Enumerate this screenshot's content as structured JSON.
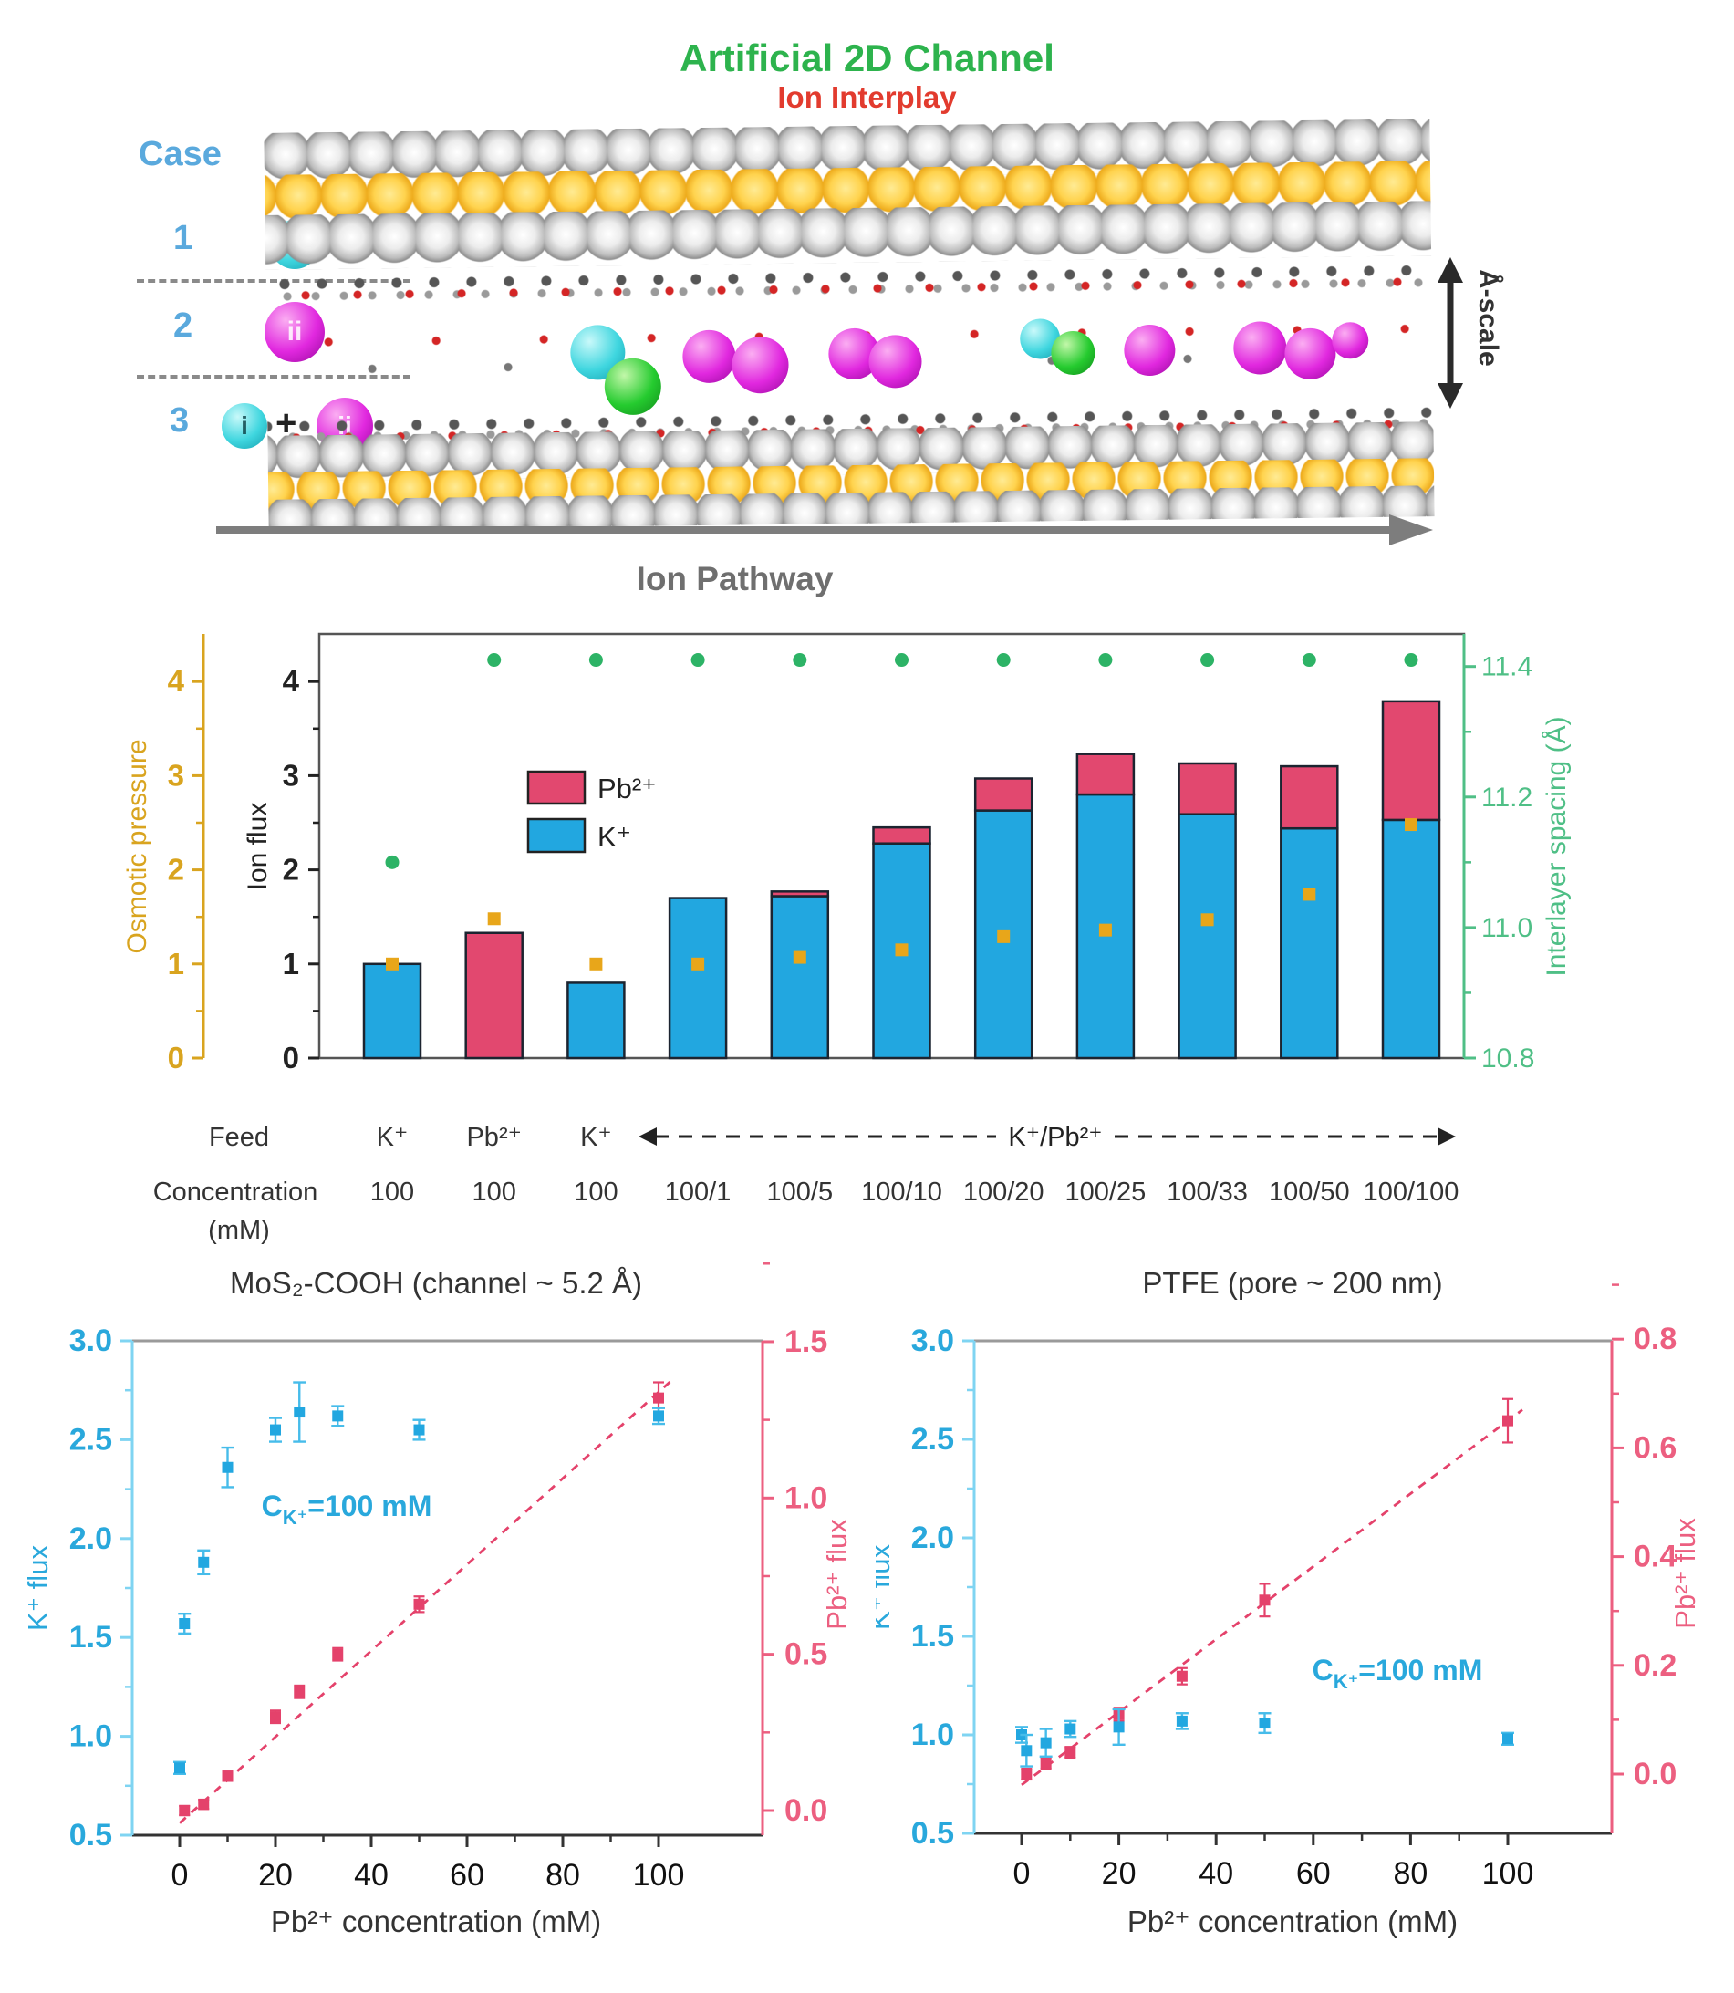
{
  "header": {
    "title": "Artificial 2D Channel",
    "subtitle": "Ion Interplay"
  },
  "diagram": {
    "case_label": "Case",
    "cases": [
      {
        "num": "1",
        "items": [
          {
            "type": "ion-i",
            "label": "i"
          }
        ]
      },
      {
        "num": "2",
        "items": [
          {
            "type": "ion-ii",
            "label": "ii"
          }
        ]
      },
      {
        "num": "3",
        "items": [
          {
            "type": "ion-i",
            "label": "i"
          },
          {
            "type": "plus",
            "label": "+"
          },
          {
            "type": "ion-ii",
            "label": "ii"
          }
        ]
      }
    ],
    "channel_ions": [
      "i",
      "x",
      "ii",
      "ii",
      "ii",
      "ii",
      "i",
      "x",
      "ii",
      "ii",
      "ii",
      "ii"
    ],
    "colors": {
      "ion_i": "#3fd6df",
      "ion_ii": "#e128df",
      "ion_extra": "#25cb2f"
    },
    "scale_label": "Å-scale",
    "pathway_label": "Ion Pathway"
  },
  "chart_data": [
    {
      "id": "ion_flux_bar",
      "type": "bar",
      "categories": [
        "100",
        "100",
        "100",
        "100/1",
        "100/5",
        "100/10",
        "100/20",
        "100/25",
        "100/33",
        "100/50",
        "100/100"
      ],
      "feed_labels": [
        "K⁺",
        "Pb²⁺",
        "K⁺"
      ],
      "feed_group_label": "K⁺/Pb²⁺",
      "row_headers": {
        "feed": "Feed",
        "concentration": "Concentration",
        "unit": "(mM)"
      },
      "series": [
        {
          "name": "Pb²⁺",
          "color": "#e2486f",
          "values": [
            0,
            1.33,
            0,
            0,
            0.05,
            0.17,
            0.34,
            0.43,
            0.54,
            0.66,
            1.26
          ]
        },
        {
          "name": "K⁺",
          "color": "#22a7e0",
          "values": [
            1.0,
            0,
            0.8,
            1.7,
            1.72,
            2.28,
            2.63,
            2.8,
            2.59,
            2.44,
            2.53
          ]
        }
      ],
      "osmotic_pressure": {
        "label": "Osmotic pressure",
        "color": "#d9a41f",
        "values": [
          1.0,
          1.48,
          1.0,
          1.0,
          1.07,
          1.15,
          1.29,
          1.36,
          1.47,
          1.74,
          2.48
        ],
        "ticks": [
          0,
          1,
          2,
          3,
          4
        ]
      },
      "ion_flux_axis": {
        "label": "Ion flux",
        "color": "#222222",
        "ticks": [
          0,
          1,
          2,
          3,
          4
        ],
        "range": [
          0,
          4.5
        ]
      },
      "interlayer": {
        "label": "Interlayer spacing (Å)",
        "color": "#2db366",
        "axis_color": "#4fbf86",
        "values": [
          11.1,
          11.41,
          11.41,
          11.41,
          11.41,
          11.41,
          11.41,
          11.41,
          11.41,
          11.41,
          11.41
        ],
        "ticks": [
          10.8,
          11.0,
          11.2,
          11.4
        ],
        "minor_ticks": [
          10.9,
          11.1,
          11.3
        ],
        "range": [
          10.8,
          11.45
        ]
      }
    },
    {
      "id": "mos2_scatter",
      "type": "scatter",
      "title": "MoS₂-COOH (channel ~ 5.2 Å)",
      "xlabel": "Pb²⁺ concentration (mM)",
      "x_ticks": [
        0,
        20,
        40,
        60,
        80,
        100
      ],
      "left_axis": {
        "label": "K⁺ flux",
        "color": "#29a8dc",
        "ticks": [
          0.5,
          1.0,
          1.5,
          2.0,
          2.5,
          3.0
        ],
        "range": [
          0.5,
          3.0
        ]
      },
      "right_axis": {
        "label": "Pb²⁺ flux",
        "color": "#ec5f80",
        "ticks": [
          0.0,
          0.5,
          1.0,
          1.5
        ],
        "range": [
          0.0,
          1.5
        ]
      },
      "annotation": {
        "pre": "C",
        "sub": "K⁺",
        "post": "=100 mM"
      },
      "k_series": {
        "name": "K⁺ flux",
        "color": "#22a7e0",
        "x": [
          0,
          1,
          5,
          10,
          20,
          25,
          33,
          50,
          100
        ],
        "y": [
          0.84,
          1.57,
          1.88,
          2.36,
          2.55,
          2.64,
          2.62,
          2.55,
          2.62
        ],
        "err": [
          0.03,
          0.05,
          0.06,
          0.1,
          0.06,
          0.15,
          0.05,
          0.05,
          0.04
        ]
      },
      "pb_series": {
        "name": "Pb²⁺ flux",
        "color": "#e4426b",
        "x": [
          1,
          5,
          10,
          20,
          25,
          33,
          50,
          100
        ],
        "y": [
          0.0,
          0.02,
          0.11,
          0.3,
          0.38,
          0.5,
          0.66,
          1.32
        ],
        "err": [
          0.015,
          0.015,
          0.015,
          0.02,
          0.02,
          0.02,
          0.025,
          0.05
        ],
        "trend": {
          "x": [
            0,
            103
          ],
          "y": [
            -0.04,
            1.38
          ]
        }
      }
    },
    {
      "id": "ptfe_scatter",
      "type": "scatter",
      "title": "PTFE (pore ~ 200 nm)",
      "xlabel": "Pb²⁺ concentration (mM)",
      "x_ticks": [
        0,
        20,
        40,
        60,
        80,
        100
      ],
      "left_axis": {
        "label": "K⁺ flux",
        "color": "#29a8dc",
        "ticks": [
          0.5,
          1.0,
          1.5,
          2.0,
          2.5,
          3.0
        ],
        "range": [
          0.5,
          3.0
        ]
      },
      "right_axis": {
        "label": "Pb²⁺ flux",
        "color": "#ec5f80",
        "ticks": [
          0.0,
          0.2,
          0.4,
          0.6,
          0.8
        ],
        "range": [
          0.0,
          0.8
        ]
      },
      "annotation": {
        "pre": "C",
        "sub": "K⁺",
        "post": "=100 mM"
      },
      "k_series": {
        "name": "K⁺ flux",
        "color": "#22a7e0",
        "x": [
          0,
          1,
          5,
          10,
          20,
          33,
          50,
          100
        ],
        "y": [
          1.0,
          0.92,
          0.96,
          1.03,
          1.04,
          1.07,
          1.06,
          0.98
        ],
        "err": [
          0.04,
          0.08,
          0.07,
          0.04,
          0.09,
          0.04,
          0.05,
          0.03
        ]
      },
      "pb_series": {
        "name": "Pb²⁺ flux",
        "color": "#e4426b",
        "x": [
          1,
          5,
          10,
          20,
          33,
          50,
          100
        ],
        "y": [
          0.0,
          0.02,
          0.04,
          0.11,
          0.18,
          0.32,
          0.65
        ],
        "err": [
          0.01,
          0.01,
          0.01,
          0.012,
          0.015,
          0.03,
          0.04
        ],
        "trend": {
          "x": [
            0,
            103
          ],
          "y": [
            -0.02,
            0.67
          ]
        }
      }
    }
  ]
}
